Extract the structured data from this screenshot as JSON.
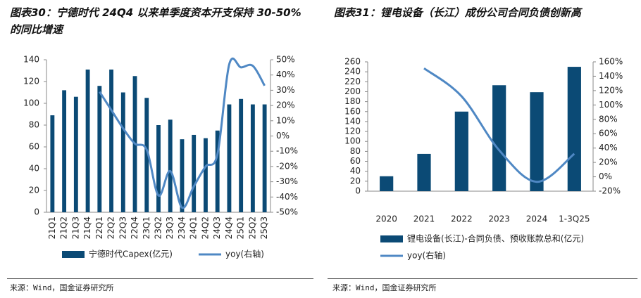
{
  "chart_data": [
    {
      "type": "bar",
      "title": "图表30：宁德时代 24Q4 以来单季度资本开支保持 30-50%的同比增速",
      "categories": [
        "21Q1",
        "21Q2",
        "21Q3",
        "21Q4",
        "22Q1",
        "22Q2",
        "22Q3",
        "22Q4",
        "23Q1",
        "23Q2",
        "23Q3",
        "23Q4",
        "24Q1",
        "24Q2",
        "24Q3",
        "24Q4",
        "25Q1",
        "25Q2",
        "25Q3"
      ],
      "series": [
        {
          "name": "宁德时代Capex(亿元)",
          "color": "#0b4a75",
          "values": [
            89,
            112,
            106,
            131,
            116,
            131,
            110,
            125,
            105,
            80,
            85,
            67,
            71,
            68,
            75,
            99,
            104,
            99,
            99
          ]
        },
        {
          "name": "yoy(右轴)",
          "color": "#4f88c4",
          "axis": "y2",
          "values": [
            null,
            null,
            null,
            null,
            29,
            17,
            5,
            -5,
            -9,
            -39,
            -23,
            -47,
            -33,
            -20,
            -12,
            47,
            45,
            46,
            33
          ]
        }
      ],
      "ylim": [
        0,
        140
      ],
      "yticks": [
        0,
        20,
        40,
        60,
        80,
        100,
        120,
        140
      ],
      "y2lim": [
        -50,
        50
      ],
      "y2ticks": [
        {
          "value": -50,
          "label": "-50%"
        },
        {
          "value": -40,
          "label": "-40%"
        },
        {
          "value": -30,
          "label": "-30%"
        },
        {
          "value": -20,
          "label": "-20%"
        },
        {
          "value": -10,
          "label": "-10%"
        },
        {
          "value": 0,
          "label": "0%"
        },
        {
          "value": 10,
          "label": "10%"
        },
        {
          "value": 20,
          "label": "20%"
        },
        {
          "value": 30,
          "label": "30%"
        },
        {
          "value": 40,
          "label": "40%"
        },
        {
          "value": 50,
          "label": "50%"
        }
      ],
      "source": "来源：Wind，国金证券研究所"
    },
    {
      "type": "bar",
      "title": "图表31：锂电设备（长江）成份公司合同负债创新高",
      "categories": [
        "2020",
        "2021",
        "2022",
        "2023",
        "2024",
        "1-3Q25"
      ],
      "series": [
        {
          "name": "锂电设备(长江)-合同负债、预收账款总和(亿元)",
          "color": "#0b4a75",
          "values": [
            30,
            75,
            160,
            213,
            199,
            250
          ]
        },
        {
          "name": "yoy(右轴)",
          "color": "#4f88c4",
          "axis": "y2",
          "values": [
            null,
            151,
            112,
            37,
            -7,
            32
          ]
        }
      ],
      "ylim": [
        0,
        260
      ],
      "yticks": [
        0,
        20,
        40,
        60,
        80,
        100,
        120,
        140,
        160,
        180,
        200,
        220,
        240,
        260
      ],
      "y2lim": [
        -20,
        160
      ],
      "y2ticks": [
        {
          "value": -20,
          "label": "-20%"
        },
        {
          "value": 0,
          "label": "0%"
        },
        {
          "value": 20,
          "label": "20%"
        },
        {
          "value": 40,
          "label": "40%"
        },
        {
          "value": 60,
          "label": "60%"
        },
        {
          "value": 80,
          "label": "80%"
        },
        {
          "value": 100,
          "label": "100%"
        },
        {
          "value": 120,
          "label": "120%"
        },
        {
          "value": 140,
          "label": "140%"
        },
        {
          "value": 160,
          "label": "160%"
        }
      ],
      "source": "来源：Wind，国金证券研究所"
    }
  ]
}
